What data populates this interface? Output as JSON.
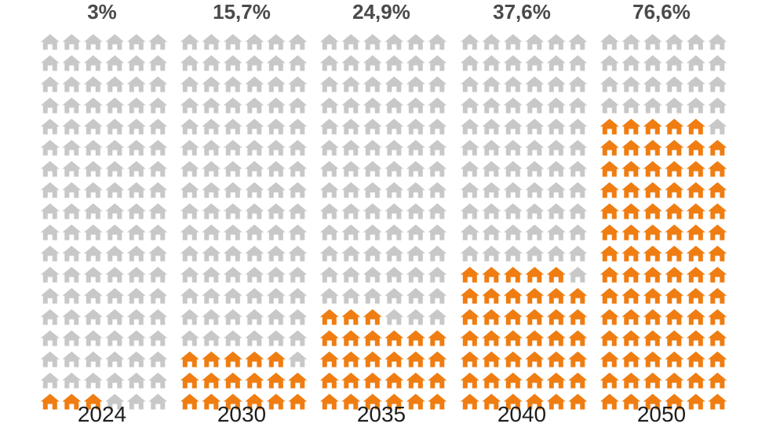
{
  "colors": {
    "filled": "#ef7d11",
    "empty": "#c8c8c8"
  },
  "icon": "house-icon",
  "chart_data": {
    "type": "pictogram",
    "units_per_column": 108,
    "grid": {
      "rows": 18,
      "cols": 6
    },
    "categories": [
      "2024",
      "2030",
      "2035",
      "2040",
      "2050"
    ],
    "values": [
      3,
      15.7,
      24.9,
      37.6,
      76.6
    ],
    "value_labels": [
      "3%",
      "15,7%",
      "24,9%",
      "37,6%",
      "76,6%"
    ]
  }
}
